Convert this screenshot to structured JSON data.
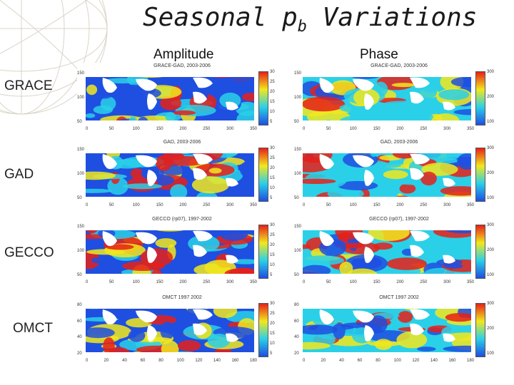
{
  "title": {
    "main": "Seasonal p",
    "sub": "b",
    "tail": " Variations"
  },
  "columns": {
    "amplitude": "Amplitude",
    "phase": "Phase"
  },
  "rows": [
    {
      "label": "GRACE",
      "amp_title": "GRACE-GAD, 2003-2006",
      "phase_title": "GRACE-GAD, 2003-2006",
      "yticks": [
        "150",
        "100",
        "50"
      ],
      "xticks": [
        "0",
        "50",
        "100",
        "150",
        "200",
        "250",
        "300",
        "350"
      ]
    },
    {
      "label": "GAD",
      "amp_title": "GAD, 2003-2006",
      "phase_title": "GAD, 2003-2006",
      "yticks": [
        "150",
        "100",
        "50"
      ],
      "xticks": [
        "0",
        "50",
        "100",
        "150",
        "200",
        "250",
        "300",
        "350"
      ]
    },
    {
      "label": "GECCO",
      "amp_title": "GECCO (rp07), 1997-2002",
      "phase_title": "GECCO (rp07), 1997-2002",
      "yticks": [
        "150",
        "100",
        "50"
      ],
      "xticks": [
        "0",
        "50",
        "100",
        "150",
        "200",
        "250",
        "300",
        "350"
      ]
    },
    {
      "label": "OMCT",
      "amp_title": "OMCT 1997 2002",
      "phase_title": "OMCT 1997 2002",
      "yticks": [
        "80",
        "60",
        "40",
        "20"
      ],
      "xticks": [
        "0",
        "20",
        "40",
        "60",
        "80",
        "100",
        "120",
        "140",
        "160",
        "180"
      ]
    }
  ],
  "amp_colorbar_ticks": [
    "30",
    "25",
    "20",
    "15",
    "10",
    "5"
  ],
  "phase_colorbar_ticks": [
    "300",
    "200",
    "100"
  ],
  "colors": {
    "ocean_low": "#1f4fe0",
    "ocean_mid": "#2ad0e8",
    "ocean_high": "#f2e81c",
    "ocean_peak": "#e82018",
    "land": "#ffffff"
  }
}
